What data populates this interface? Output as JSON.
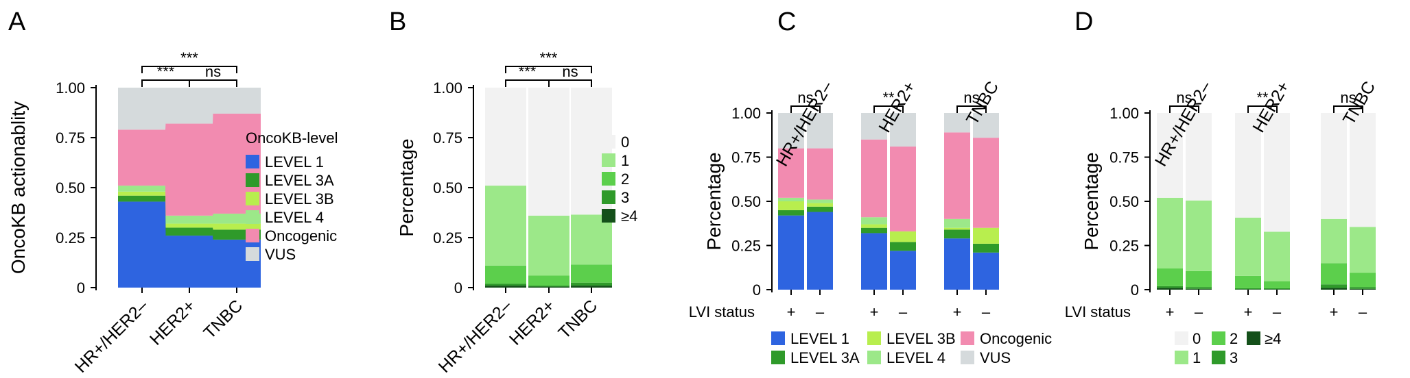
{
  "chart_data": [
    {
      "panel": "A",
      "type": "bar",
      "stacked": true,
      "ylabel": "OncoKB actionablity",
      "ylim": [
        0,
        1
      ],
      "yticks": [
        "0",
        "0.25",
        "0.50",
        "0.75",
        "1.00"
      ],
      "categories": [
        "HR+/HER2–",
        "HER2+",
        "TNBC"
      ],
      "legend_title": "OncoKB-level",
      "legend_placement": "right",
      "series": [
        {
          "name": "LEVEL 1",
          "color": "#2e64e0",
          "values": [
            0.43,
            0.26,
            0.24
          ]
        },
        {
          "name": "LEVEL 3A",
          "color": "#2f9a2a",
          "values": [
            0.03,
            0.04,
            0.05
          ]
        },
        {
          "name": "LEVEL 3B",
          "color": "#b8ee4e",
          "values": [
            0.02,
            0.02,
            0.03
          ]
        },
        {
          "name": "LEVEL 4",
          "color": "#9ce889",
          "values": [
            0.03,
            0.04,
            0.05
          ]
        },
        {
          "name": "Oncogenic",
          "color": "#f28bb0",
          "values": [
            0.28,
            0.46,
            0.5
          ]
        },
        {
          "name": "VUS",
          "color": "#d5dadc",
          "values": [
            0.21,
            0.18,
            0.13
          ]
        }
      ],
      "significance": [
        {
          "label": "***",
          "pair": [
            0,
            1
          ]
        },
        {
          "label": "ns",
          "pair": [
            1,
            2
          ]
        },
        {
          "label": "***",
          "pair": [
            0,
            2
          ]
        }
      ]
    },
    {
      "panel": "B",
      "type": "bar",
      "stacked": true,
      "ylabel": "Percentage",
      "ylim": [
        0,
        1
      ],
      "yticks": [
        "0",
        "0.25",
        "0.50",
        "0.75",
        "1.00"
      ],
      "categories": [
        "HR+/HER2–",
        "HER2+",
        "TNBC"
      ],
      "legend_placement": "right",
      "series": [
        {
          "name": "≥4",
          "color": "#14501a",
          "values": [
            0.01,
            0.005,
            0.01
          ]
        },
        {
          "name": "3",
          "color": "#2f9a2a",
          "values": [
            0.01,
            0.005,
            0.015
          ]
        },
        {
          "name": "2",
          "color": "#5ccf4c",
          "values": [
            0.09,
            0.05,
            0.09
          ]
        },
        {
          "name": "1",
          "color": "#9ce889",
          "values": [
            0.4,
            0.3,
            0.25
          ]
        },
        {
          "name": "0",
          "color": "#f2f2f2",
          "values": [
            0.49,
            0.64,
            0.635
          ]
        }
      ],
      "significance": [
        {
          "label": "***",
          "pair": [
            0,
            1
          ]
        },
        {
          "label": "ns",
          "pair": [
            1,
            2
          ]
        },
        {
          "label": "***",
          "pair": [
            0,
            2
          ]
        }
      ]
    },
    {
      "panel": "C",
      "type": "bar",
      "stacked": true,
      "ylabel": "Percentage",
      "ylim": [
        0,
        1
      ],
      "yticks": [
        "0",
        "0.25",
        "0.50",
        "0.75",
        "1.00"
      ],
      "groups": [
        "HR+/HER2–",
        "HER2+",
        "TNBC"
      ],
      "xlabel": "LVI status",
      "subcategories": [
        "+",
        "–"
      ],
      "legend_placement": "bottom",
      "series": [
        {
          "name": "LEVEL 1",
          "color": "#2e64e0",
          "values": [
            [
              0.42,
              0.44
            ],
            [
              0.32,
              0.22
            ],
            [
              0.29,
              0.21
            ]
          ]
        },
        {
          "name": "LEVEL 3A",
          "color": "#2f9a2a",
          "values": [
            [
              0.03,
              0.03
            ],
            [
              0.03,
              0.05
            ],
            [
              0.05,
              0.05
            ]
          ]
        },
        {
          "name": "LEVEL 3B",
          "color": "#b8ee4e",
          "values": [
            [
              0.05,
              0.02
            ],
            [
              0.02,
              0.06
            ],
            [
              0.01,
              0.09
            ]
          ]
        },
        {
          "name": "LEVEL 4",
          "color": "#9ce889",
          "values": [
            [
              0.02,
              0.02
            ],
            [
              0.04,
              0.0
            ],
            [
              0.05,
              0.0
            ]
          ]
        },
        {
          "name": "Oncogenic",
          "color": "#f28bb0",
          "values": [
            [
              0.28,
              0.29
            ],
            [
              0.44,
              0.48
            ],
            [
              0.49,
              0.51
            ]
          ]
        },
        {
          "name": "VUS",
          "color": "#d5dadc",
          "values": [
            [
              0.2,
              0.2
            ],
            [
              0.15,
              0.19
            ],
            [
              0.11,
              0.14
            ]
          ]
        }
      ],
      "significance": [
        "ns",
        "**",
        "ns"
      ]
    },
    {
      "panel": "D",
      "type": "bar",
      "stacked": true,
      "ylabel": "Percentage",
      "ylim": [
        0,
        1
      ],
      "yticks": [
        "0",
        "0.25",
        "0.50",
        "0.75",
        "1.00"
      ],
      "groups": [
        "HR+/HER2–",
        "HER2+",
        "TNBC"
      ],
      "xlabel": "LVI status",
      "subcategories": [
        "+",
        "–"
      ],
      "legend_placement": "bottom",
      "series": [
        {
          "name": "≥4",
          "color": "#14501a",
          "values": [
            [
              0.01,
              0.005
            ],
            [
              0.003,
              0.003
            ],
            [
              0.01,
              0.005
            ]
          ]
        },
        {
          "name": "3",
          "color": "#2f9a2a",
          "values": [
            [
              0.01,
              0.01
            ],
            [
              0.005,
              0.005
            ],
            [
              0.02,
              0.01
            ]
          ]
        },
        {
          "name": "2",
          "color": "#5ccf4c",
          "values": [
            [
              0.1,
              0.09
            ],
            [
              0.07,
              0.04
            ],
            [
              0.12,
              0.08
            ]
          ]
        },
        {
          "name": "1",
          "color": "#9ce889",
          "values": [
            [
              0.4,
              0.4
            ],
            [
              0.33,
              0.28
            ],
            [
              0.25,
              0.26
            ]
          ]
        },
        {
          "name": "0",
          "color": "#f2f2f2",
          "values": [
            [
              0.48,
              0.495
            ],
            [
              0.592,
              0.672
            ],
            [
              0.6,
              0.645
            ]
          ]
        }
      ],
      "legend_order": [
        "0",
        "2",
        "≥4",
        "1",
        "3"
      ],
      "significance": [
        "ns",
        "**",
        "ns"
      ]
    }
  ]
}
